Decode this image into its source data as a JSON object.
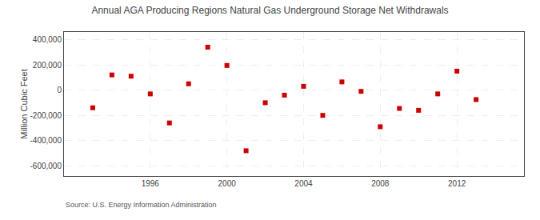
{
  "chart_data": {
    "type": "scatter",
    "title": "Annual AGA Producing Regions Natural Gas Underground Storage Net Withdrawals",
    "ylabel": "Million Cubic Feet",
    "source": "Source: U.S. Energy Information Administration",
    "x": [
      1993,
      1994,
      1995,
      1996,
      1997,
      1998,
      1999,
      2000,
      2001,
      2002,
      2003,
      2004,
      2005,
      2006,
      2007,
      2008,
      2009,
      2010,
      2011,
      2012,
      2013
    ],
    "values": [
      -140000,
      120000,
      110000,
      -30000,
      -260000,
      50000,
      340000,
      195000,
      -480000,
      -100000,
      -40000,
      30000,
      -200000,
      65000,
      -10000,
      -290000,
      -145000,
      -160000,
      -30000,
      150000,
      -75000
    ],
    "color": "#cc0000",
    "marker": "square",
    "xlim": [
      1991.5,
      2015.5
    ],
    "xticks": [
      1996,
      2000,
      2004,
      2008,
      2012
    ],
    "ylim": [
      -680000,
      460000
    ],
    "yticks": [
      {
        "value": -600000,
        "label": "-600,000"
      },
      {
        "value": -400000,
        "label": "-400,000"
      },
      {
        "value": -200000,
        "label": "-200,000"
      },
      0,
      {
        "value": 200000,
        "label": "200,000"
      },
      {
        "value": 400000,
        "label": "400,000"
      }
    ],
    "grid": true
  }
}
